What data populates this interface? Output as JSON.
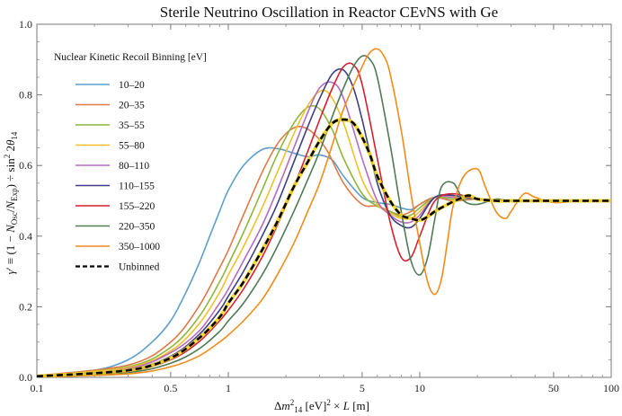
{
  "chart_data": {
    "type": "line",
    "title": "Sterile Neutrino Oscillation in Reactor CEνNS with Ge",
    "xlabel": "Δm²₁₄ [eV]² × L [m]",
    "ylabel": "γ′ ≡ (1 − N_Osc/N_Exp) ÷ sin² 2θ₁₄",
    "xscale": "log",
    "xlim": [
      0.1,
      100
    ],
    "ylim": [
      0.0,
      1.0
    ],
    "x_ticks": [
      0.1,
      0.5,
      1,
      5,
      10,
      50,
      100
    ],
    "x_tick_labels": [
      "0.1",
      "0.5",
      "1",
      "5",
      "10",
      "50",
      "100"
    ],
    "y_ticks": [
      0.0,
      0.2,
      0.4,
      0.6,
      0.8,
      1.0
    ],
    "y_tick_labels": [
      "0.0",
      "0.2",
      "0.4",
      "0.6",
      "0.8",
      "1.0"
    ],
    "grid": false,
    "legend_title": "Nuclear Kinetic Recoil Binning [eV]",
    "legend_position": "top-left",
    "series": [
      {
        "name": "10–20",
        "color": "#5e9ec9",
        "dashed": false,
        "x": [
          0.1,
          0.2,
          0.3,
          0.4,
          0.5,
          0.6,
          0.7,
          0.8,
          0.9,
          1.0,
          1.2,
          1.5,
          1.8,
          2.2,
          2.6,
          3.0,
          3.5,
          4.0,
          5.0,
          6.0,
          7.0,
          8.0,
          9.0,
          10,
          12,
          15,
          20,
          30,
          50,
          100
        ],
        "y": [
          0.005,
          0.02,
          0.05,
          0.1,
          0.16,
          0.24,
          0.32,
          0.4,
          0.47,
          0.53,
          0.6,
          0.645,
          0.648,
          0.635,
          0.625,
          0.63,
          0.615,
          0.57,
          0.51,
          0.495,
          0.49,
          0.48,
          0.475,
          0.49,
          0.51,
          0.5,
          0.505,
          0.5,
          0.5,
          0.5
        ]
      },
      {
        "name": "20–35",
        "color": "#e07848",
        "dashed": false,
        "x": [
          0.1,
          0.3,
          0.5,
          0.7,
          0.9,
          1.0,
          1.2,
          1.5,
          1.8,
          2.1,
          2.4,
          2.8,
          3.3,
          4.0,
          5.0,
          6.0,
          7.0,
          8.0,
          9.0,
          10,
          12,
          15,
          20,
          30,
          50,
          100
        ],
        "y": [
          0.005,
          0.035,
          0.1,
          0.2,
          0.31,
          0.36,
          0.46,
          0.58,
          0.66,
          0.7,
          0.71,
          0.69,
          0.64,
          0.55,
          0.49,
          0.485,
          0.47,
          0.46,
          0.47,
          0.49,
          0.51,
          0.5,
          0.505,
          0.5,
          0.5,
          0.5
        ]
      },
      {
        "name": "35–55",
        "color": "#8eb63a",
        "dashed": false,
        "x": [
          0.1,
          0.3,
          0.5,
          0.7,
          0.9,
          1.0,
          1.2,
          1.5,
          1.8,
          2.2,
          2.6,
          3.0,
          3.5,
          4.0,
          5.0,
          6.0,
          7.0,
          8.0,
          9.0,
          10,
          12,
          15,
          20,
          30,
          50,
          100
        ],
        "y": [
          0.004,
          0.03,
          0.085,
          0.17,
          0.27,
          0.32,
          0.41,
          0.53,
          0.63,
          0.72,
          0.765,
          0.76,
          0.7,
          0.62,
          0.52,
          0.485,
          0.47,
          0.455,
          0.46,
          0.48,
          0.51,
          0.505,
          0.505,
          0.5,
          0.5,
          0.5
        ]
      },
      {
        "name": "55–80",
        "color": "#f2c02a",
        "dashed": false,
        "x": [
          0.1,
          0.3,
          0.5,
          0.7,
          0.9,
          1.0,
          1.2,
          1.5,
          1.8,
          2.2,
          2.6,
          3.0,
          3.4,
          4.0,
          5.0,
          6.0,
          7.0,
          8.0,
          9.0,
          10,
          12,
          15,
          20,
          30,
          50,
          100
        ],
        "y": [
          0.004,
          0.028,
          0.075,
          0.15,
          0.24,
          0.29,
          0.37,
          0.48,
          0.58,
          0.69,
          0.77,
          0.81,
          0.8,
          0.72,
          0.56,
          0.49,
          0.465,
          0.45,
          0.45,
          0.47,
          0.51,
          0.51,
          0.505,
          0.5,
          0.5,
          0.5
        ]
      },
      {
        "name": "80–110",
        "color": "#b56bc2",
        "dashed": false,
        "x": [
          0.1,
          0.3,
          0.5,
          0.7,
          0.9,
          1.0,
          1.2,
          1.5,
          1.8,
          2.2,
          2.6,
          3.0,
          3.5,
          4.0,
          5.0,
          6.0,
          7.0,
          8.0,
          9.0,
          10,
          12,
          15,
          20,
          30,
          50,
          100
        ],
        "y": [
          0.003,
          0.025,
          0.07,
          0.13,
          0.21,
          0.25,
          0.33,
          0.43,
          0.53,
          0.65,
          0.75,
          0.82,
          0.835,
          0.79,
          0.62,
          0.5,
          0.46,
          0.44,
          0.44,
          0.46,
          0.51,
          0.51,
          0.505,
          0.5,
          0.5,
          0.5
        ]
      },
      {
        "name": "110–155",
        "color": "#3d3f80",
        "dashed": false,
        "x": [
          0.1,
          0.3,
          0.5,
          0.7,
          0.9,
          1.0,
          1.2,
          1.5,
          1.8,
          2.2,
          2.6,
          3.0,
          3.5,
          4.0,
          4.5,
          5.0,
          6.0,
          7.0,
          8.0,
          9.0,
          10,
          12,
          15,
          20,
          30,
          50,
          100
        ],
        "y": [
          0.003,
          0.022,
          0.06,
          0.12,
          0.19,
          0.23,
          0.3,
          0.4,
          0.49,
          0.61,
          0.71,
          0.79,
          0.86,
          0.87,
          0.82,
          0.73,
          0.55,
          0.46,
          0.43,
          0.425,
          0.45,
          0.51,
          0.515,
          0.505,
          0.5,
          0.5,
          0.5
        ]
      },
      {
        "name": "155–220",
        "color": "#d61f2e",
        "dashed": false,
        "x": [
          0.1,
          0.3,
          0.5,
          0.7,
          0.9,
          1.0,
          1.2,
          1.5,
          1.8,
          2.2,
          2.6,
          3.0,
          3.5,
          4.0,
          4.5,
          5.0,
          6.0,
          7.0,
          8.0,
          9.0,
          10,
          12,
          15,
          20,
          30,
          50,
          100
        ],
        "y": [
          0.002,
          0.018,
          0.05,
          0.1,
          0.16,
          0.19,
          0.25,
          0.34,
          0.43,
          0.54,
          0.64,
          0.73,
          0.82,
          0.88,
          0.885,
          0.83,
          0.62,
          0.44,
          0.34,
          0.34,
          0.4,
          0.5,
          0.52,
          0.505,
          0.5,
          0.5,
          0.5
        ]
      },
      {
        "name": "220–350",
        "color": "#4f7b54",
        "dashed": false,
        "x": [
          0.1,
          0.3,
          0.5,
          0.7,
          0.9,
          1.0,
          1.2,
          1.5,
          1.8,
          2.2,
          2.6,
          3.0,
          3.5,
          4.0,
          4.5,
          5.0,
          5.5,
          6.0,
          7.0,
          8.0,
          9.0,
          10,
          11,
          12,
          13,
          15,
          17,
          20,
          25,
          30,
          50,
          100
        ],
        "y": [
          0.002,
          0.014,
          0.04,
          0.08,
          0.13,
          0.16,
          0.21,
          0.29,
          0.37,
          0.47,
          0.56,
          0.64,
          0.74,
          0.82,
          0.88,
          0.91,
          0.9,
          0.85,
          0.66,
          0.47,
          0.33,
          0.29,
          0.34,
          0.45,
          0.54,
          0.55,
          0.5,
          0.49,
          0.505,
          0.5,
          0.5,
          0.5
        ]
      },
      {
        "name": "350–1000",
        "color": "#f08c1a",
        "dashed": false,
        "x": [
          0.1,
          0.3,
          0.5,
          0.7,
          0.9,
          1.0,
          1.2,
          1.5,
          1.8,
          2.2,
          2.6,
          3.0,
          3.5,
          4.0,
          5.0,
          5.5,
          6.0,
          6.5,
          7.0,
          8.0,
          9.0,
          10,
          11,
          12,
          13,
          14,
          15,
          17,
          20,
          22,
          25,
          28,
          30,
          35,
          40,
          50,
          70,
          100
        ],
        "y": [
          0.001,
          0.01,
          0.03,
          0.06,
          0.1,
          0.12,
          0.16,
          0.22,
          0.29,
          0.38,
          0.47,
          0.55,
          0.66,
          0.76,
          0.88,
          0.92,
          0.93,
          0.91,
          0.86,
          0.7,
          0.52,
          0.38,
          0.27,
          0.235,
          0.28,
          0.39,
          0.49,
          0.57,
          0.59,
          0.54,
          0.47,
          0.45,
          0.47,
          0.52,
          0.51,
          0.495,
          0.5,
          0.5
        ]
      },
      {
        "name": "Unbinned",
        "color": "#000000",
        "dashed": true,
        "x": [
          0.1,
          0.3,
          0.5,
          0.7,
          0.9,
          1.0,
          1.2,
          1.5,
          1.8,
          2.2,
          2.6,
          3.0,
          3.5,
          4.0,
          4.5,
          5.0,
          5.5,
          6.0,
          7.0,
          8.0,
          9.0,
          10,
          11,
          12,
          14,
          16,
          18,
          20,
          25,
          30,
          50,
          100
        ],
        "y": [
          0.003,
          0.02,
          0.055,
          0.11,
          0.17,
          0.21,
          0.27,
          0.36,
          0.44,
          0.54,
          0.61,
          0.67,
          0.72,
          0.73,
          0.72,
          0.68,
          0.63,
          0.57,
          0.5,
          0.46,
          0.45,
          0.445,
          0.455,
          0.47,
          0.49,
          0.505,
          0.515,
          0.505,
          0.5,
          0.5,
          0.5,
          0.5
        ]
      }
    ]
  }
}
